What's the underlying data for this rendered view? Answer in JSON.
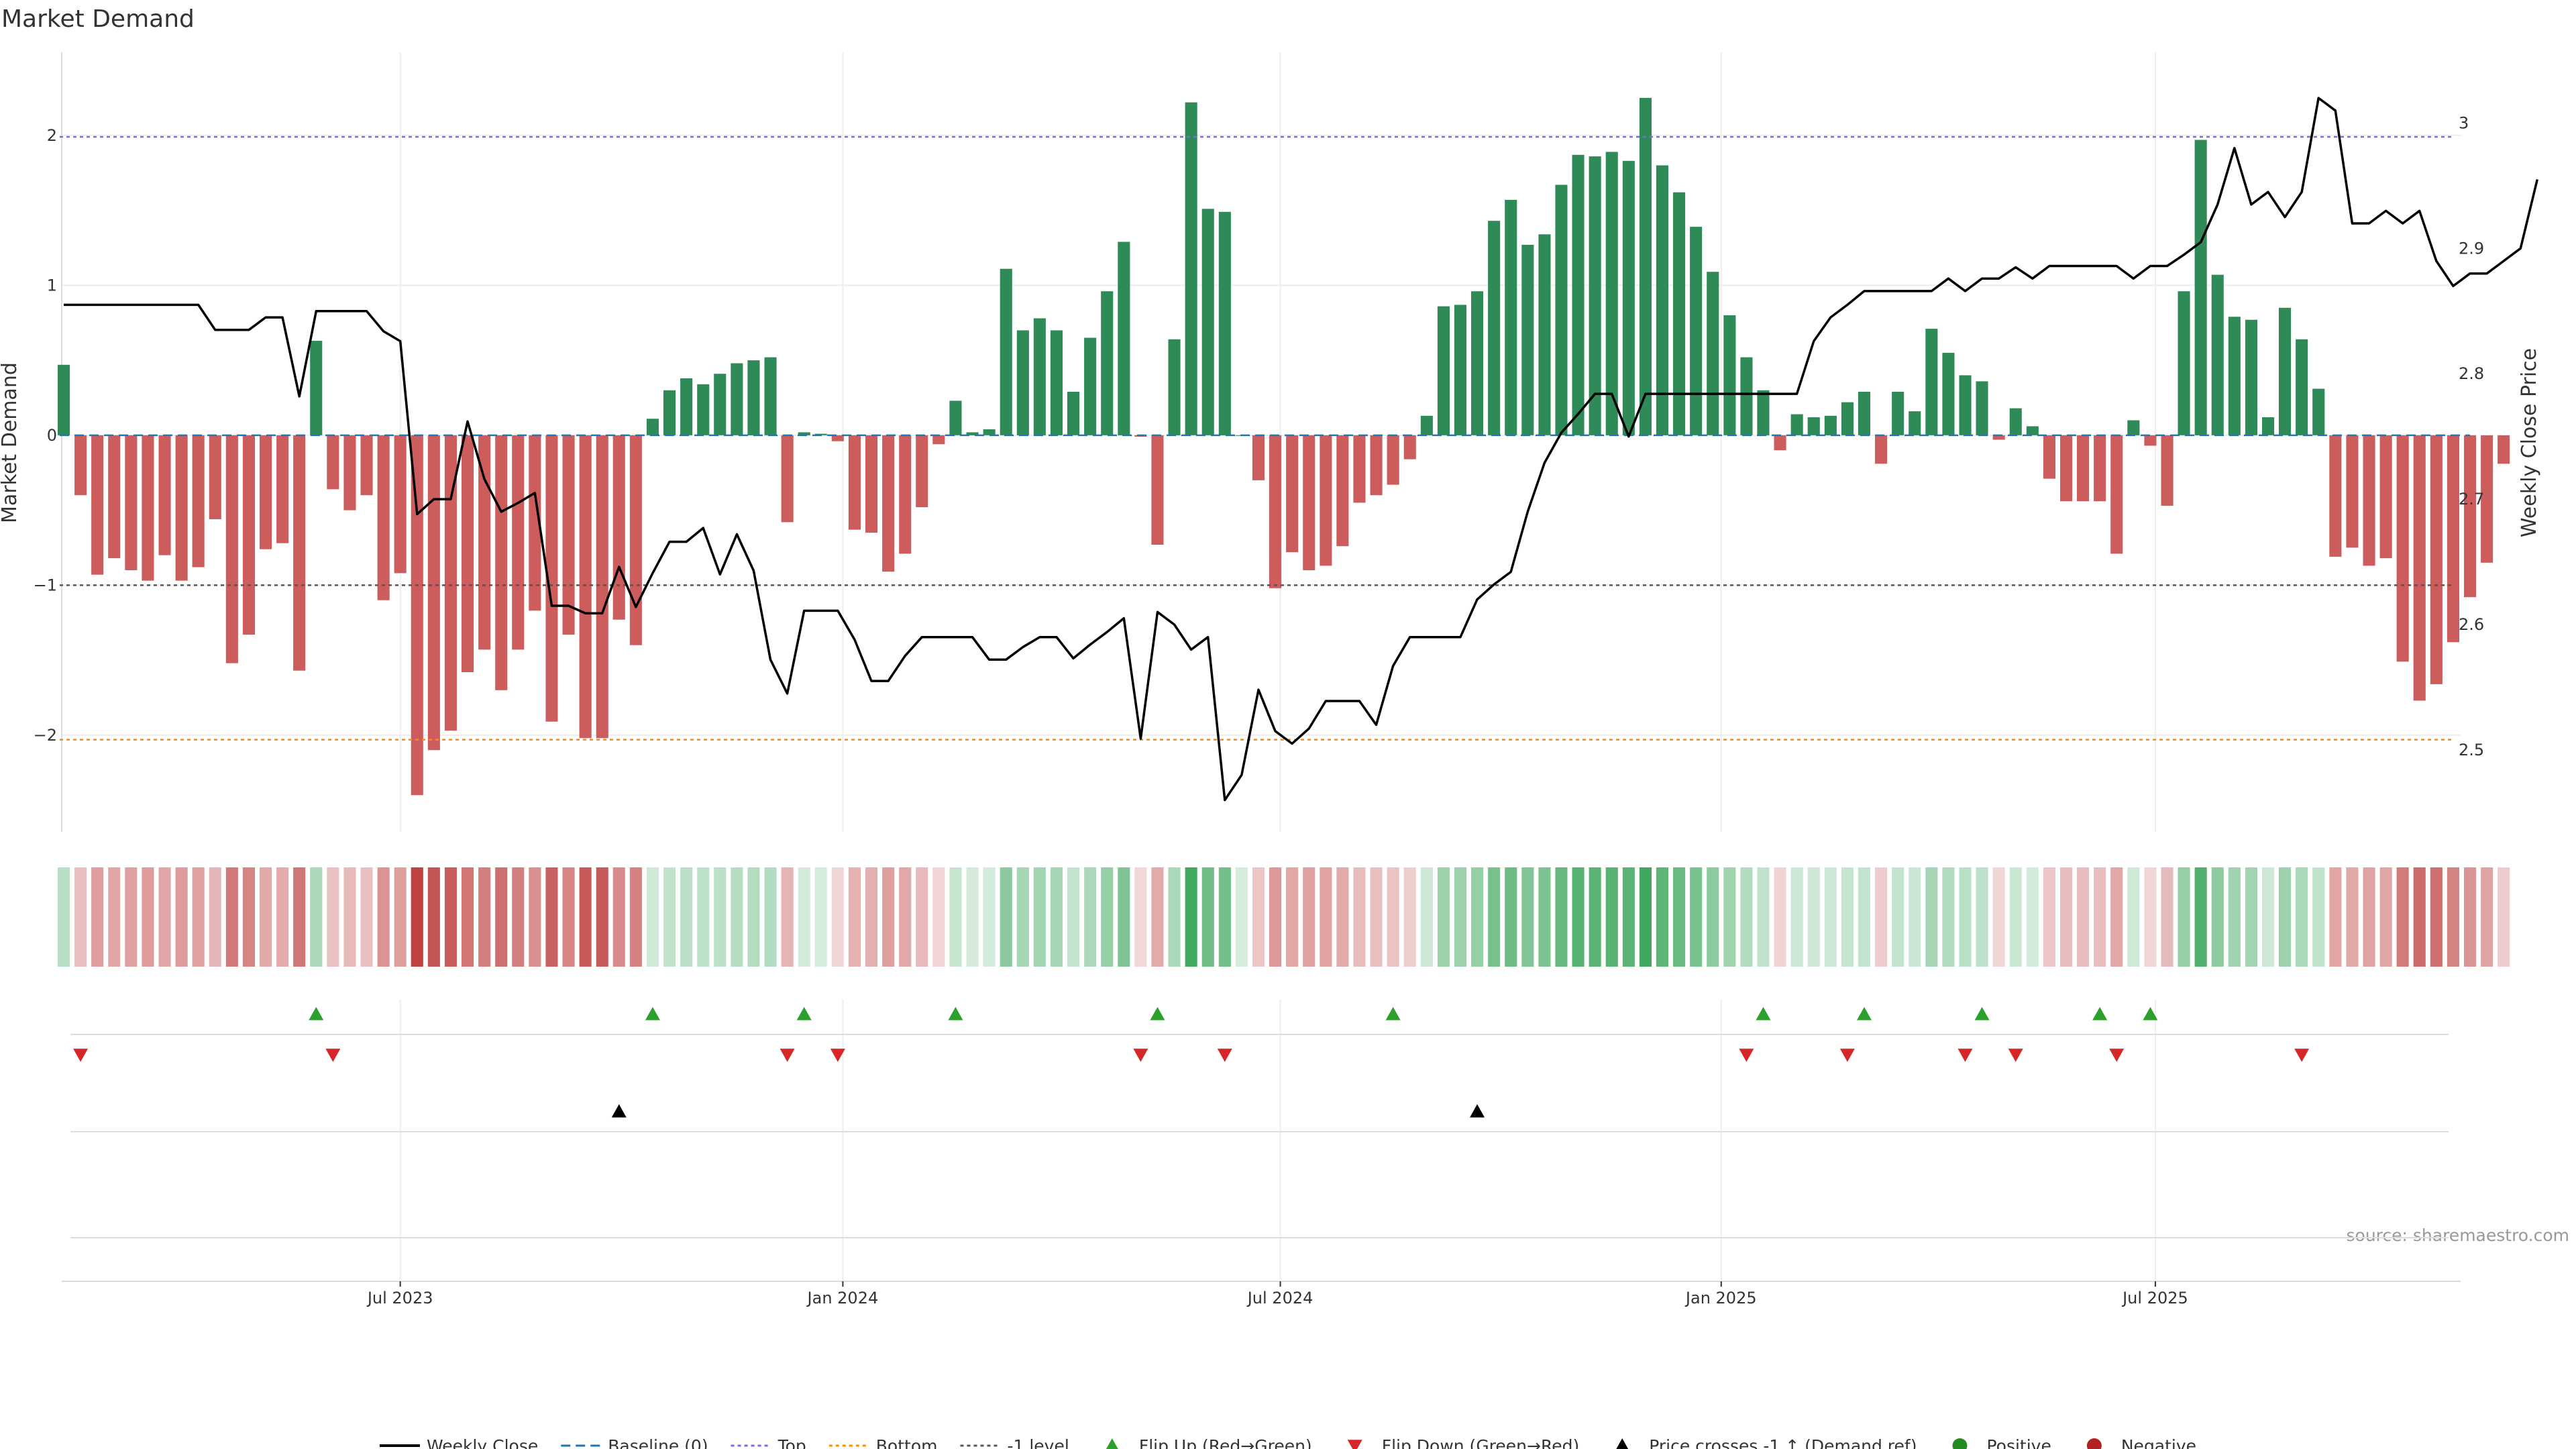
{
  "chart_data": {
    "type": "bar",
    "title": "Market Demand",
    "xlabel": "",
    "ylabel": "Market Demand",
    "y2label": "Weekly Close Price",
    "source": "source: sharemaestro.com",
    "ylim": [
      -2.6,
      2.5
    ],
    "y2lim": [
      2.44,
      3.05
    ],
    "yticks": [
      2,
      1,
      0,
      -1,
      -2
    ],
    "ytick_labels": [
      "2",
      "1",
      "0",
      "−1",
      "−2"
    ],
    "y2ticks": [
      3.0,
      2.9,
      2.8,
      2.7,
      2.6,
      2.5
    ],
    "y2tick_labels": [
      "3",
      "2.9",
      "2.8",
      "2.7",
      "2.6",
      "2.5"
    ],
    "xticks": [
      "Jul 2023",
      "Jan 2024",
      "Jul 2024",
      "Jan 2025",
      "Jul 2025"
    ],
    "xtick_weeks": [
      20,
      46.3,
      72.3,
      98.5,
      124.3
    ],
    "grid": true,
    "legend_position": "bottom",
    "reference_lines": [
      {
        "name": "Top",
        "value": 1.99,
        "color": "#7b68ee"
      },
      {
        "name": "Bottom",
        "value": -2.03,
        "color": "#ff8c00"
      },
      {
        "name": "-1 level",
        "value": -1.0,
        "color": "#555555"
      }
    ],
    "colors": {
      "positive": "#2e8b57",
      "negative": "#cd5c5c",
      "price": "#000000",
      "flip_up": "#2ca02c",
      "flip_down": "#d62728",
      "cross": "#000000",
      "baseline": "#1f77b4"
    },
    "weeks_count": 144,
    "demand": [
      0.47,
      -0.4,
      -0.93,
      -0.82,
      -0.9,
      -0.97,
      -0.8,
      -0.97,
      -0.88,
      -0.56,
      -1.52,
      -1.33,
      -0.76,
      -0.72,
      -1.57,
      0.63,
      -0.36,
      -0.5,
      -0.4,
      -1.1,
      -0.92,
      -2.4,
      -2.1,
      -1.97,
      -1.58,
      -1.43,
      -1.7,
      -1.43,
      -1.17,
      -1.91,
      -1.33,
      -2.02,
      -2.02,
      -1.23,
      -1.4,
      0.11,
      0.3,
      0.38,
      0.34,
      0.41,
      0.48,
      0.5,
      0.52,
      -0.58,
      0.02,
      0.01,
      -0.04,
      -0.63,
      -0.65,
      -0.91,
      -0.79,
      -0.48,
      -0.06,
      0.23,
      0.02,
      0.04,
      1.11,
      0.7,
      0.78,
      0.7,
      0.29,
      0.65,
      0.96,
      1.29,
      -0.01,
      -0.73,
      0.64,
      2.22,
      1.51,
      1.49,
      0.0,
      -0.3,
      -1.02,
      -0.78,
      -0.9,
      -0.87,
      -0.74,
      -0.45,
      -0.4,
      -0.33,
      -0.16,
      0.13,
      0.86,
      0.87,
      0.96,
      1.43,
      1.57,
      1.27,
      1.34,
      1.67,
      1.87,
      1.86,
      1.89,
      1.83,
      2.25,
      1.8,
      1.62,
      1.39,
      1.09,
      0.8,
      0.52,
      0.3,
      -0.1,
      0.14,
      0.12,
      0.13,
      0.22,
      0.29,
      -0.19,
      0.29,
      0.16,
      0.71,
      0.55,
      0.4,
      0.36,
      -0.03,
      0.18,
      0.06,
      -0.29,
      -0.44,
      -0.44,
      -0.44,
      -0.79,
      0.1,
      -0.07,
      -0.47,
      0.96,
      1.97,
      1.07,
      0.79,
      0.77,
      0.12,
      0.85,
      0.64,
      0.31,
      -0.81,
      -0.75,
      -0.87,
      -0.82,
      -1.51,
      -1.77,
      -1.66,
      -1.38,
      -1.08,
      -0.85,
      -0.19
    ],
    "price": [
      2.855,
      2.855,
      2.855,
      2.855,
      2.855,
      2.855,
      2.855,
      2.855,
      2.855,
      2.835,
      2.835,
      2.835,
      2.845,
      2.845,
      2.782,
      2.85,
      2.85,
      2.85,
      2.85,
      2.834,
      2.826,
      2.688,
      2.7,
      2.7,
      2.762,
      2.716,
      2.69,
      2.697,
      2.705,
      2.615,
      2.615,
      2.609,
      2.609,
      2.646,
      2.614,
      2.641,
      2.666,
      2.666,
      2.677,
      2.64,
      2.672,
      2.643,
      2.572,
      2.545,
      2.611,
      2.611,
      2.611,
      2.588,
      2.555,
      2.555,
      2.575,
      2.59,
      2.59,
      2.59,
      2.59,
      2.572,
      2.572,
      2.582,
      2.59,
      2.59,
      2.573,
      2.584,
      2.594,
      2.605,
      2.509,
      2.61,
      2.6,
      2.58,
      2.59,
      2.46,
      2.48,
      2.548,
      2.515,
      2.505,
      2.517,
      2.539,
      2.539,
      2.539,
      2.52,
      2.567,
      2.59,
      2.59,
      2.59,
      2.59,
      2.62,
      2.632,
      2.642,
      2.69,
      2.729,
      2.753,
      2.768,
      2.784,
      2.784,
      2.75,
      2.784,
      2.784,
      2.784,
      2.784,
      2.784,
      2.784,
      2.784,
      2.784,
      2.784,
      2.784,
      2.826,
      2.845,
      2.855,
      2.866,
      2.866,
      2.866,
      2.866,
      2.866,
      2.876,
      2.866,
      2.876,
      2.876,
      2.885,
      2.876,
      2.886,
      2.886,
      2.886,
      2.886,
      2.886,
      2.876,
      2.886,
      2.886,
      2.895,
      2.905,
      2.935,
      2.98,
      2.935,
      2.945,
      2.925,
      2.945,
      3.02,
      3.01,
      2.92,
      2.92,
      2.93,
      2.92,
      2.93,
      2.89,
      2.87,
      2.88,
      2.88,
      2.89,
      2.9,
      2.955
    ],
    "flip_up_weeks": [
      15,
      35,
      44,
      53,
      65,
      79,
      101,
      107,
      114,
      121,
      124
    ],
    "flip_down_weeks": [
      1,
      16,
      43,
      46,
      64,
      69,
      100,
      106,
      113,
      116,
      122,
      133
    ],
    "price_cross_weeks": [
      33,
      84
    ],
    "legend": [
      {
        "label": "Weekly Close",
        "marker": "line",
        "color": "#000000"
      },
      {
        "label": "Baseline (0)",
        "marker": "dash",
        "color": "#1f77b4"
      },
      {
        "label": "Top",
        "marker": "dot",
        "color": "#7b68ee"
      },
      {
        "label": "Bottom",
        "marker": "dot",
        "color": "#ff8c00"
      },
      {
        "label": "-1 level",
        "marker": "dot",
        "color": "#555555"
      },
      {
        "label": "Flip Up (Red→Green)",
        "marker": "tri-up",
        "color": "#2ca02c"
      },
      {
        "label": "Flip Down (Green→Red)",
        "marker": "tri-down",
        "color": "#d62728"
      },
      {
        "label": "Price crosses -1 ↑ (Demand ref)",
        "marker": "tri-up",
        "color": "#000000"
      },
      {
        "label": "Positive",
        "marker": "circle",
        "color": "#228b22"
      },
      {
        "label": "Negative",
        "marker": "circle",
        "color": "#b22222"
      }
    ]
  }
}
